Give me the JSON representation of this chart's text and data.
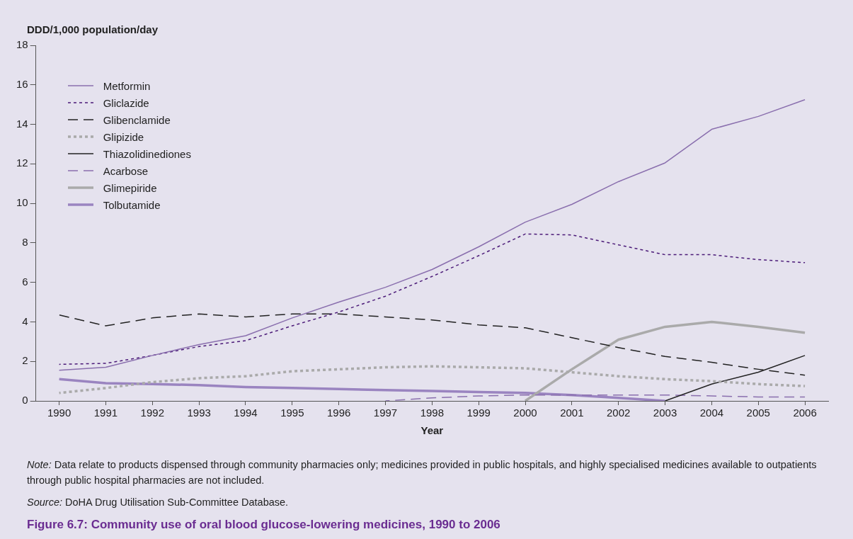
{
  "chart_data": {
    "type": "line",
    "title": "Figure 6.7: Community use of oral blood glucose-lowering medicines, 1990 to 2006",
    "ylabel": "DDD/1,000 population/day",
    "xlabel": "Year",
    "categories": [
      "1990",
      "1991",
      "1992",
      "1993",
      "1994",
      "1995",
      "1996",
      "1997",
      "1998",
      "1999",
      "2000",
      "2001",
      "2002",
      "2003",
      "2004",
      "2005",
      "2006"
    ],
    "ylim": [
      0,
      18
    ],
    "yticks": [
      0,
      2,
      4,
      6,
      8,
      10,
      12,
      14,
      16,
      18
    ],
    "grid": false,
    "legend": "top left",
    "marker": "none",
    "series": [
      {
        "name": "Metformin",
        "color": "#8a6fae",
        "line_style": "solid",
        "values": [
          1.55,
          1.7,
          2.3,
          2.85,
          3.3,
          4.2,
          5.0,
          5.75,
          6.65,
          7.8,
          9.05,
          9.95,
          11.1,
          12.05,
          13.75,
          14.4,
          15.25
        ]
      },
      {
        "name": "Gliclazide",
        "color": "#4b1a78",
        "line_style": "dotted",
        "values": [
          1.85,
          1.9,
          2.3,
          2.75,
          3.05,
          3.8,
          4.5,
          5.3,
          6.3,
          7.35,
          8.45,
          8.4,
          7.9,
          7.4,
          7.4,
          7.15,
          7.0
        ]
      },
      {
        "name": "Glibenclamide",
        "color": "#222222",
        "line_style": "dashed",
        "values": [
          4.35,
          3.8,
          4.2,
          4.4,
          4.25,
          4.4,
          4.4,
          4.25,
          4.1,
          3.85,
          3.7,
          3.2,
          2.7,
          2.25,
          1.95,
          1.6,
          1.3
        ]
      },
      {
        "name": "Glipizide",
        "color": "#aaaaaa",
        "line_style": "dotted",
        "values": [
          0.4,
          0.65,
          0.95,
          1.15,
          1.25,
          1.5,
          1.6,
          1.7,
          1.75,
          1.7,
          1.65,
          1.45,
          1.25,
          1.1,
          1.0,
          0.85,
          0.75
        ]
      },
      {
        "name": "Thiazolidinediones",
        "color": "#222222",
        "line_style": "solid",
        "values": [
          null,
          null,
          null,
          null,
          null,
          null,
          null,
          null,
          null,
          null,
          null,
          null,
          null,
          0,
          0.85,
          1.45,
          2.3
        ]
      },
      {
        "name": "Acarbose",
        "color": "#8a6fae",
        "line_style": "dashed",
        "values": [
          null,
          null,
          null,
          null,
          null,
          null,
          null,
          0,
          0.15,
          0.25,
          0.3,
          0.3,
          0.3,
          0.3,
          0.25,
          0.2,
          0.2
        ]
      },
      {
        "name": "Glimepiride",
        "color": "#aaaaaa",
        "line_style": "solid",
        "values": [
          null,
          null,
          null,
          null,
          null,
          null,
          null,
          null,
          null,
          null,
          0,
          1.6,
          3.1,
          3.75,
          4.0,
          3.75,
          3.45
        ]
      },
      {
        "name": "Tolbutamide",
        "color": "#9a84c0",
        "line_style": "solid",
        "values": [
          1.1,
          0.9,
          0.85,
          0.8,
          0.7,
          0.65,
          0.6,
          0.55,
          0.5,
          0.45,
          0.4,
          0.3,
          0.15,
          0.0,
          null,
          null,
          null
        ]
      }
    ],
    "annotations": [
      "Note: Data relate to products dispensed through community pharmacies only; medicines provided in public hospitals, and highly specialised medicines available to outpatients through public hospital pharmacies are not included.",
      "Source: DoHA Drug Utilisation Sub-Committee Database."
    ]
  }
}
